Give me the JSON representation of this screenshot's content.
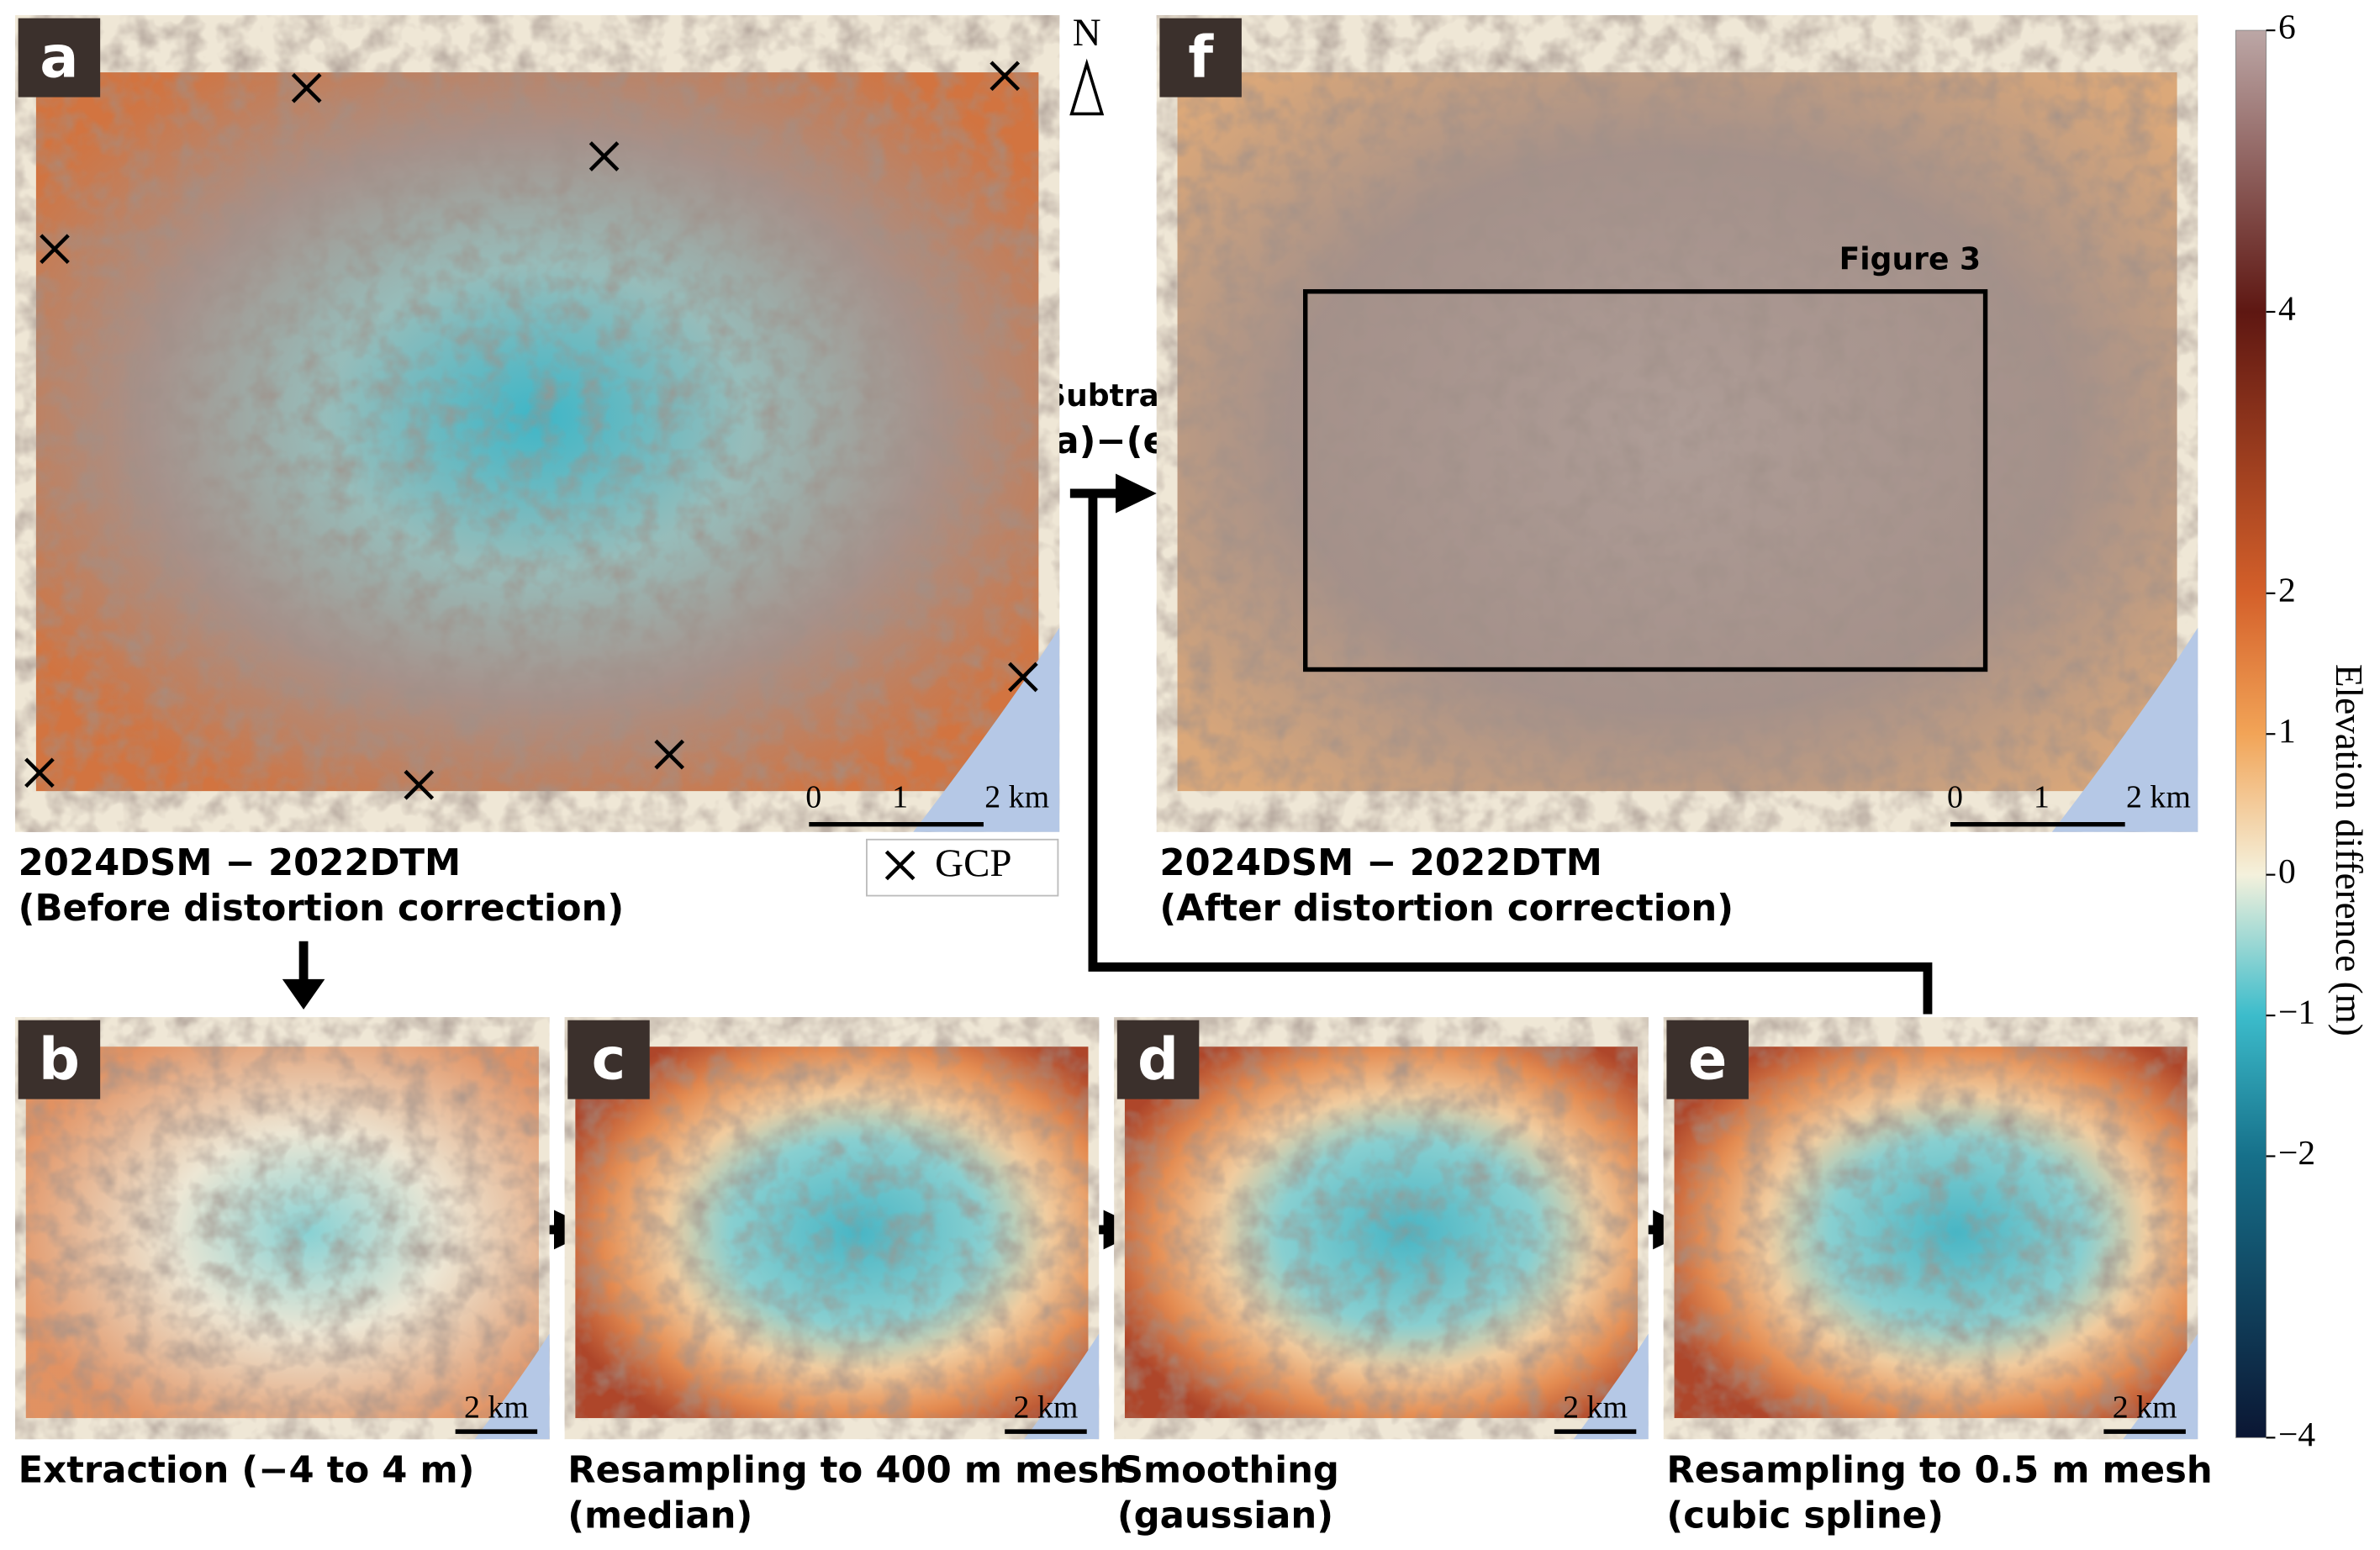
{
  "panels": [
    {
      "letter": "a",
      "caption": [
        "2024DSM − 2022DTM",
        "(Before distortion correction)"
      ],
      "scale_labels": [
        "0",
        "1",
        "2 km"
      ]
    },
    {
      "letter": "f",
      "caption": [
        "2024DSM − 2022DTM",
        "(After distortion correction)"
      ],
      "scale_labels": [
        "0",
        "1",
        "2 km"
      ]
    },
    {
      "letter": "b",
      "caption": [
        "Extraction (−4 to 4 m)"
      ],
      "scale_labels": [
        "2 km"
      ]
    },
    {
      "letter": "c",
      "caption": [
        "Resampling to 400 m mesh",
        "(median)"
      ],
      "scale_labels": [
        "2 km"
      ]
    },
    {
      "letter": "d",
      "caption": [
        "Smoothing",
        "(gaussian)"
      ],
      "scale_labels": [
        "2 km"
      ]
    },
    {
      "letter": "e",
      "caption": [
        "Resampling to 0.5 m mesh",
        "(cubic spline)"
      ],
      "scale_labels": [
        "2 km"
      ]
    }
  ],
  "north": "N",
  "gcp_legend": "GCP",
  "arrow_label": [
    "Subtraction",
    "(a)−(e)"
  ],
  "inset_label": "Figure 3",
  "colorbar": {
    "label": "Elevation difference (m)",
    "ylim": [
      -4,
      6
    ],
    "yticks": [
      6,
      4,
      2,
      1,
      0,
      {
        "value": -1,
        "label": "−1"
      },
      {
        "value": -2,
        "label": "−2"
      },
      {
        "value": -4,
        "label": "−4"
      }
    ]
  }
}
